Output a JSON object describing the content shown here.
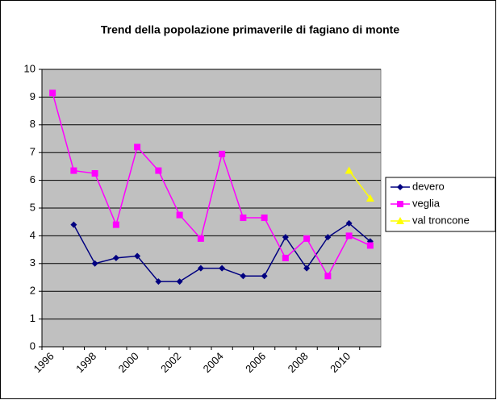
{
  "chart_data": {
    "type": "line",
    "title": "Trend della popolazione primaverile di fagiano di monte",
    "categories": [
      "1996",
      null,
      "1998",
      null,
      "2000",
      null,
      "2002",
      null,
      "2004",
      null,
      "2006",
      null,
      "2008",
      null,
      "2010",
      null
    ],
    "series": [
      {
        "name": "devero",
        "color": "#000080",
        "marker": "diamond",
        "values": [
          null,
          4.4,
          3.0,
          3.2,
          3.27,
          2.35,
          2.35,
          2.83,
          2.83,
          2.55,
          2.55,
          3.95,
          2.83,
          3.95,
          4.45,
          3.8
        ]
      },
      {
        "name": "veglia",
        "color": "#ff00ff",
        "marker": "square",
        "values": [
          9.15,
          6.35,
          6.25,
          4.4,
          7.2,
          6.35,
          4.75,
          3.9,
          6.95,
          4.65,
          4.65,
          3.2,
          3.9,
          2.55,
          4.0,
          3.65
        ]
      },
      {
        "name": "val troncone",
        "color": "#ffff00",
        "marker": "triangle",
        "values": [
          null,
          null,
          null,
          null,
          null,
          null,
          null,
          null,
          null,
          null,
          null,
          null,
          null,
          null,
          6.35,
          5.35
        ]
      }
    ],
    "ylim": [
      0,
      10
    ],
    "yticks": [
      0,
      1,
      2,
      3,
      4,
      5,
      6,
      7,
      8,
      9,
      10
    ],
    "grid": true,
    "plot_background": "#c0c0c0",
    "legend": "right"
  }
}
